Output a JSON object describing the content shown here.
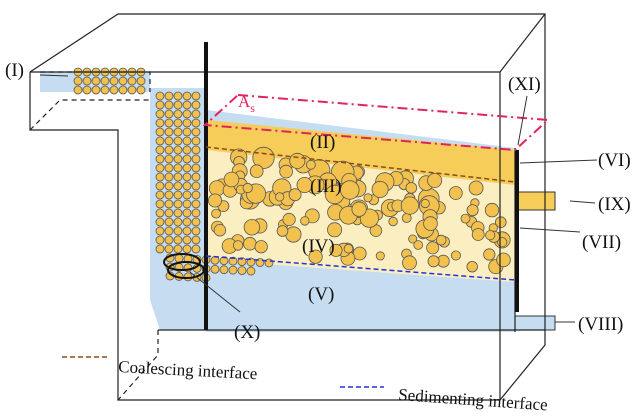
{
  "labels": {
    "inlet": "(I)",
    "area": {
      "symbol": "A",
      "subscript": "s"
    },
    "zone_2": "(II)",
    "zone_3": "(III)",
    "zone_4": "(IV)",
    "zone_5": "(V)",
    "zone_6": "(VI)",
    "zone_7": "(VII)",
    "zone_8": "(VIII)",
    "zone_9": "(IX)",
    "zone_10": "(X)",
    "zone_11": "(XI)"
  },
  "legend": [
    {
      "text": "Coalescing interface"
    },
    {
      "text": "Sedimenting interface"
    }
  ]
}
